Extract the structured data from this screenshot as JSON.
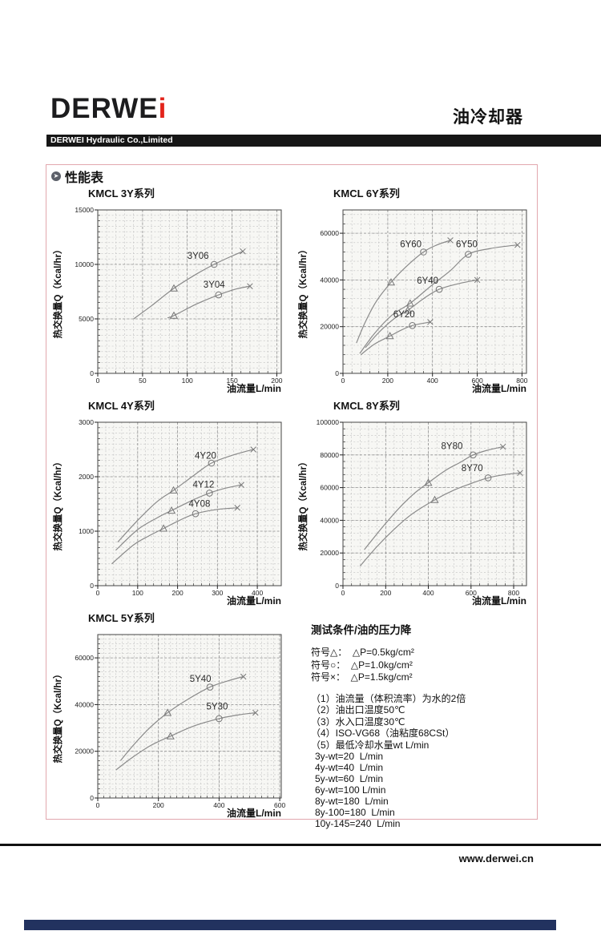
{
  "header": {
    "logo_main": "DERWE",
    "logo_i": "i",
    "company_bar": "DERWEI Hydraulic Co.,Limited",
    "page_title": "油冷却器"
  },
  "section": {
    "title": "性能表"
  },
  "footer": {
    "website": "www.derwei.cn"
  },
  "colors": {
    "accent_red": "#e3241b",
    "bar_black": "#161616",
    "box_border_pink": "#e2a7ae",
    "bottom_bar_navy": "#22325f",
    "curve_gray": "#8a8a8a"
  },
  "test_conditions": {
    "title": "测试条件/油的压力降",
    "symbols": [
      "符号△：  △P=0.5kg/cm²",
      "符号○：  △P=1.0kg/cm²",
      "符号×：  △P=1.5kg/cm²"
    ],
    "notes": [
      "（1）油流量（体积流率）为水的2倍",
      "（2）油出口温度50℃",
      "（3）水入口温度30℃",
      "（4）ISO-VG68（油粘度68CSt）",
      "（5）最低冷却水量wt L/min"
    ],
    "flows": [
      "3y-wt=20  L/min",
      "4y-wt=40  L/min",
      "5y-wt=60  L/min",
      "6y-wt=100 L/min",
      "8y-wt=180  L/min",
      "8y-100=180  L/min",
      "10y-145=240  L/min"
    ]
  },
  "chart_data": [
    {
      "type": "line",
      "title": "KMCL 3Y系列",
      "xlabel": "油流量L/min",
      "ylabel": "热交换量Q（Kcal/hr）",
      "xlim": [
        0,
        205
      ],
      "ylim": [
        0,
        15000
      ],
      "x_ticks": [
        0,
        50,
        100,
        150,
        200
      ],
      "y_ticks": [
        0,
        5000,
        10000,
        15000
      ],
      "x_minor": 10,
      "y_minor": 500,
      "series": [
        {
          "name": "3Y06",
          "points": [
            [
              40,
              5000
            ],
            [
              60,
              6200
            ],
            [
              85,
              7800
            ],
            [
              110,
              9100
            ],
            [
              130,
              10000
            ],
            [
              148,
              10700
            ],
            [
              162,
              11200
            ]
          ],
          "markers": {
            "triangle": [
              85,
              7800
            ],
            "circle": [
              130,
              10000
            ],
            "cross": [
              162,
              11200
            ]
          },
          "label_xy": [
            100,
            10500
          ]
        },
        {
          "name": "3Y04",
          "points": [
            [
              78,
              5100
            ],
            [
              85,
              5300
            ],
            [
              110,
              6350
            ],
            [
              135,
              7200
            ],
            [
              155,
              7750
            ],
            [
              170,
              8000
            ]
          ],
          "markers": {
            "triangle": [
              85,
              5300
            ],
            "circle": [
              135,
              7200
            ],
            "cross": [
              170,
              8000
            ]
          },
          "label_xy": [
            118,
            7850
          ]
        }
      ]
    },
    {
      "type": "line",
      "title": "KMCL 6Y系列",
      "xlabel": "油流量L/min",
      "ylabel": "热交换量Q（Kcal/hr）",
      "xlim": [
        0,
        820
      ],
      "ylim": [
        0,
        70000
      ],
      "x_ticks": [
        0,
        200,
        400,
        600,
        800
      ],
      "y_ticks": [
        0,
        20000,
        40000,
        60000
      ],
      "x_minor": 40,
      "y_minor": 4000,
      "series": [
        {
          "name": "6Y60",
          "points": [
            [
              60,
              13000
            ],
            [
              100,
              22000
            ],
            [
              150,
              31000
            ],
            [
              215,
              39000
            ],
            [
              280,
              45500
            ],
            [
              360,
              52000
            ],
            [
              420,
              55000
            ],
            [
              480,
              57000
            ]
          ],
          "markers": {
            "triangle": [
              215,
              39000
            ],
            "circle": [
              360,
              52000
            ],
            "cross": [
              480,
              57000
            ]
          },
          "label_xy": [
            255,
            54000
          ]
        },
        {
          "name": "6Y50",
          "points": [
            [
              75,
              8500
            ],
            [
              140,
              17000
            ],
            [
              220,
              25000
            ],
            [
              300,
              30000
            ],
            [
              400,
              38000
            ],
            [
              480,
              44000
            ],
            [
              560,
              51000
            ],
            [
              660,
              53500
            ],
            [
              780,
              55000
            ]
          ],
          "markers": {
            "triangle": [
              300,
              30000
            ],
            "circle": [
              560,
              51000
            ],
            "cross": [
              780,
              55000
            ]
          },
          "label_xy": [
            505,
            54000
          ]
        },
        {
          "name": "6Y40",
          "points": [
            [
              100,
              11000
            ],
            [
              160,
              17500
            ],
            [
              230,
              23500
            ],
            [
              290,
              27000
            ],
            [
              360,
              32000
            ],
            [
              430,
              36000
            ],
            [
              520,
              38500
            ],
            [
              600,
              40000
            ]
          ],
          "markers": {
            "triangle": [
              290,
              27000
            ],
            "circle": [
              430,
              36000
            ],
            "cross": [
              600,
              40000
            ]
          },
          "label_xy": [
            330,
            38500
          ]
        },
        {
          "name": "6Y20",
          "points": [
            [
              80,
              8000
            ],
            [
              140,
              12500
            ],
            [
              210,
              16000
            ],
            [
              260,
              18500
            ],
            [
              310,
              20500
            ],
            [
              390,
              22000
            ]
          ],
          "markers": {
            "triangle": [
              210,
              16000
            ],
            "circle": [
              310,
              20500
            ],
            "cross": [
              390,
              22000
            ]
          },
          "label_xy": [
            225,
            24000
          ]
        }
      ]
    },
    {
      "type": "line",
      "title": "KMCL 4Y系列",
      "xlabel": "油流量L/min",
      "ylabel": "热交换量Q（Kcal/hr）",
      "xlim": [
        0,
        460
      ],
      "ylim": [
        0,
        3000
      ],
      "x_ticks": [
        0,
        100,
        200,
        300,
        400
      ],
      "y_ticks": [
        0,
        1000,
        2000,
        3000
      ],
      "x_minor": 20,
      "y_minor": 100,
      "series": [
        {
          "name": "4Y20",
          "points": [
            [
              50,
              800
            ],
            [
              100,
              1200
            ],
            [
              150,
              1550
            ],
            [
              190,
              1750
            ],
            [
              240,
              2020
            ],
            [
              285,
              2250
            ],
            [
              340,
              2400
            ],
            [
              390,
              2500
            ]
          ],
          "markers": {
            "triangle": [
              190,
              1750
            ],
            "circle": [
              285,
              2250
            ],
            "cross": [
              390,
              2500
            ]
          },
          "label_xy": [
            243,
            2330
          ]
        },
        {
          "name": "4Y12",
          "points": [
            [
              45,
              650
            ],
            [
              100,
              1030
            ],
            [
              150,
              1250
            ],
            [
              185,
              1380
            ],
            [
              235,
              1560
            ],
            [
              280,
              1700
            ],
            [
              320,
              1790
            ],
            [
              360,
              1850
            ]
          ],
          "markers": {
            "triangle": [
              185,
              1380
            ],
            "circle": [
              280,
              1700
            ],
            "cross": [
              360,
              1850
            ]
          },
          "label_xy": [
            238,
            1800
          ]
        },
        {
          "name": "4Y08",
          "points": [
            [
              35,
              400
            ],
            [
              90,
              750
            ],
            [
              130,
              920
            ],
            [
              165,
              1050
            ],
            [
              205,
              1200
            ],
            [
              245,
              1320
            ],
            [
              300,
              1400
            ],
            [
              350,
              1430
            ]
          ],
          "markers": {
            "triangle": [
              165,
              1050
            ],
            "circle": [
              245,
              1320
            ],
            "cross": [
              350,
              1430
            ]
          },
          "label_xy": [
            228,
            1450
          ]
        }
      ]
    },
    {
      "type": "line",
      "title": "KMCL 8Y系列",
      "xlabel": "油流量L/min",
      "ylabel": "热交换量Q（Kcal/hr）",
      "xlim": [
        0,
        860
      ],
      "ylim": [
        0,
        100000
      ],
      "x_ticks": [
        0,
        200,
        400,
        600,
        800
      ],
      "y_ticks": [
        0,
        20000,
        40000,
        60000,
        80000,
        100000
      ],
      "x_minor": 40,
      "y_minor": 4000,
      "series": [
        {
          "name": "8Y80",
          "points": [
            [
              100,
              22000
            ],
            [
              180,
              35000
            ],
            [
              260,
              47000
            ],
            [
              330,
              56000
            ],
            [
              400,
              63000
            ],
            [
              480,
              70500
            ],
            [
              550,
              75500
            ],
            [
              610,
              80000
            ],
            [
              680,
              83000
            ],
            [
              750,
              85000
            ]
          ],
          "markers": {
            "triangle": [
              400,
              63000
            ],
            "circle": [
              610,
              80000
            ],
            "cross": [
              750,
              85000
            ]
          },
          "label_xy": [
            460,
            83500
          ]
        },
        {
          "name": "8Y70",
          "points": [
            [
              80,
              12000
            ],
            [
              160,
              24000
            ],
            [
              240,
              34500
            ],
            [
              320,
              43500
            ],
            [
              430,
              52500
            ],
            [
              520,
              58500
            ],
            [
              600,
              62500
            ],
            [
              680,
              66000
            ],
            [
              760,
              68000
            ],
            [
              830,
              69000
            ]
          ],
          "markers": {
            "triangle": [
              430,
              52500
            ],
            "circle": [
              680,
              66000
            ],
            "cross": [
              830,
              69000
            ]
          },
          "label_xy": [
            555,
            70000
          ]
        }
      ]
    },
    {
      "type": "line",
      "title": "KMCL 5Y系列",
      "xlabel": "油流量L/min",
      "ylabel": "热交换量Q（Kcal/hr）",
      "xlim": [
        0,
        605
      ],
      "ylim": [
        0,
        70000
      ],
      "x_ticks": [
        0,
        200,
        400,
        600
      ],
      "y_ticks": [
        0,
        20000,
        40000,
        60000
      ],
      "x_minor": 20,
      "y_minor": 2000,
      "series": [
        {
          "name": "5Y40",
          "points": [
            [
              75,
              16000
            ],
            [
              120,
              23000
            ],
            [
              175,
              30500
            ],
            [
              230,
              36500
            ],
            [
              300,
              42500
            ],
            [
              370,
              47500
            ],
            [
              430,
              50200
            ],
            [
              480,
              52000
            ]
          ],
          "markers": {
            "triangle": [
              230,
              36500
            ],
            "circle": [
              370,
              47500
            ],
            "cross": [
              480,
              52000
            ]
          },
          "label_xy": [
            303,
            49800
          ]
        },
        {
          "name": "5Y30",
          "points": [
            [
              60,
              12000
            ],
            [
              110,
              17000
            ],
            [
              175,
              22500
            ],
            [
              240,
              26500
            ],
            [
              320,
              31000
            ],
            [
              400,
              34000
            ],
            [
              460,
              35500
            ],
            [
              520,
              36500
            ]
          ],
          "markers": {
            "triangle": [
              240,
              26500
            ],
            "circle": [
              400,
              34000
            ],
            "cross": [
              520,
              36500
            ]
          },
          "label_xy": [
            358,
            38000
          ]
        }
      ]
    }
  ]
}
